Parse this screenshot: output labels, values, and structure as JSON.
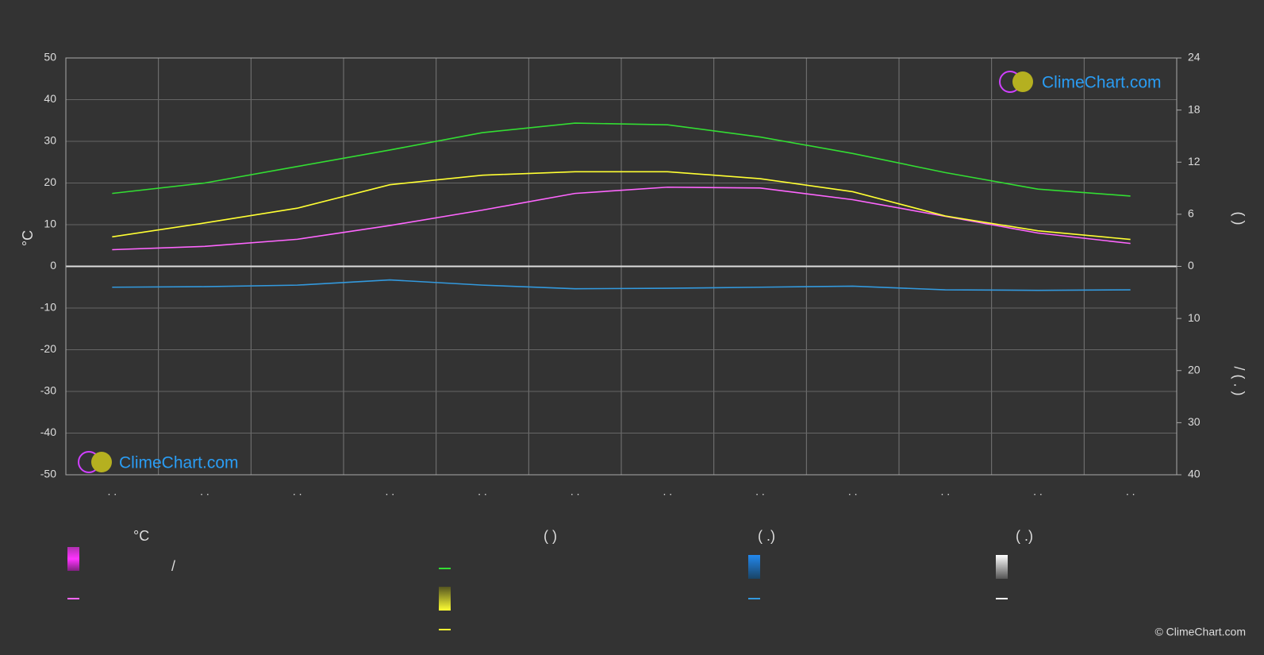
{
  "chart_data": {
    "type": "line",
    "categories": [
      ". .",
      ". .",
      ". .",
      ". .",
      ". .",
      ". .",
      ". .",
      ". .",
      ". .",
      ". .",
      ". .",
      ". ."
    ],
    "ylabel": "°C",
    "y2label": "(        )",
    "y3label": "/     (  .  )",
    "ylim": [
      -50,
      50
    ],
    "yticks": [
      -50,
      -40,
      -30,
      -20,
      -10,
      0,
      10,
      20,
      30,
      40,
      50
    ],
    "y2lim": [
      0,
      24
    ],
    "y2ticks": [
      0,
      6,
      12,
      18,
      24
    ],
    "y3lim": [
      0,
      40
    ],
    "y3ticks": [
      10,
      20,
      30,
      40
    ],
    "grid": true,
    "series": [
      {
        "color": "#ff66ff",
        "axis": "y",
        "values": [
          4.0,
          4.8,
          6.5,
          9.8,
          13.5,
          17.5,
          19.0,
          18.8,
          16.0,
          12.0,
          8.0,
          5.5
        ]
      },
      {
        "color": "#ffff33",
        "axis": "y2",
        "values": [
          3.4,
          5.0,
          6.7,
          9.4,
          10.5,
          10.9,
          10.9,
          10.1,
          8.6,
          5.8,
          4.1,
          3.1
        ]
      },
      {
        "color": "#33dd33",
        "axis": "y2",
        "values": [
          8.4,
          9.6,
          11.5,
          13.4,
          15.4,
          16.5,
          16.3,
          14.9,
          13.0,
          10.8,
          8.9,
          8.1
        ]
      },
      {
        "color": "#3399dd",
        "axis": "y3",
        "values": [
          4.0,
          3.9,
          3.6,
          2.6,
          3.6,
          4.3,
          4.2,
          4.0,
          3.8,
          4.5,
          4.6,
          4.5
        ]
      }
    ]
  },
  "legend": {
    "headers": [
      "°C",
      "(          )",
      "(   .)",
      "(   .)"
    ],
    "slash": "/"
  },
  "logo": "ClimeChart.com",
  "copyright": "© ClimeChart.com"
}
